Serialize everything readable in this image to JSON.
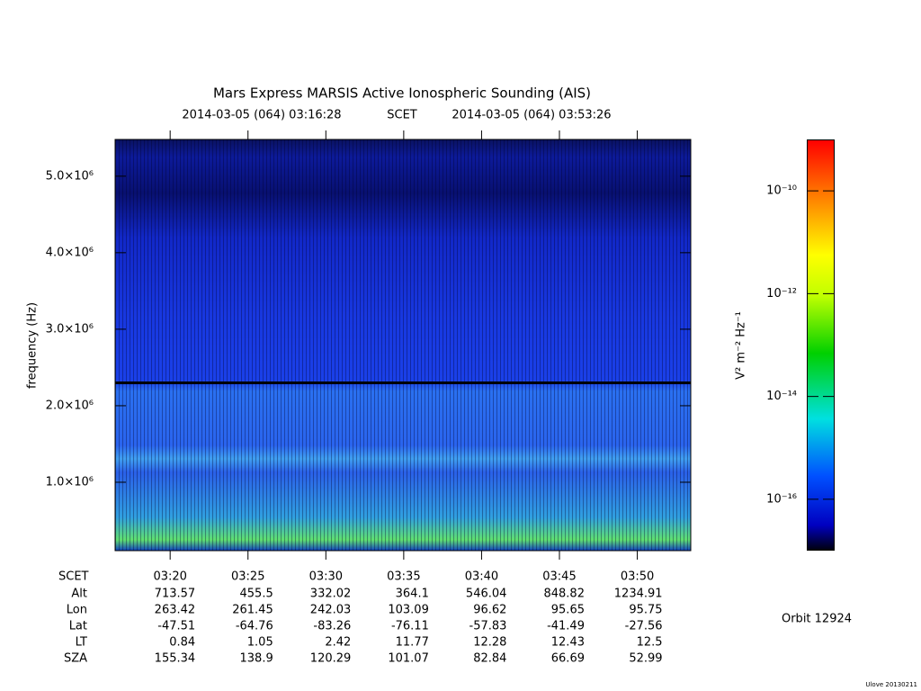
{
  "chart_data": {
    "type": "spectrogram",
    "title": "Mars Express MARSIS Active Ionospheric Sounding (AIS)",
    "start_label": "2014-03-05 (064) 03:16:28",
    "time_system": "SCET",
    "end_label": "2014-03-05 (064) 03:53:26",
    "ylabel": "frequency (Hz)",
    "xlim": [
      "03:16:28",
      "03:53:26"
    ],
    "xticks": [
      "03:20",
      "03:25",
      "03:30",
      "03:35",
      "03:40",
      "03:45",
      "03:50"
    ],
    "ylim": [
      106000,
      5480000
    ],
    "yticks": [
      {
        "value": 1000000,
        "label": "1.0×10⁶"
      },
      {
        "value": 2000000,
        "label": "2.0×10⁶"
      },
      {
        "value": 3000000,
        "label": "3.0×10⁶"
      },
      {
        "value": 4000000,
        "label": "4.0×10⁶"
      },
      {
        "value": 5000000,
        "label": "5.0×10⁶"
      }
    ],
    "colorbar": {
      "label": "V² m⁻² Hz⁻¹",
      "log": true,
      "lim": [
        1e-17,
        1e-09
      ],
      "ticks": [
        {
          "value": 1e-10,
          "label": "10⁻¹⁰"
        },
        {
          "value": 1e-12,
          "label": "10⁻¹²"
        },
        {
          "value": 1e-14,
          "label": "10⁻¹⁴"
        },
        {
          "value": 1e-16,
          "label": "10⁻¹⁶"
        }
      ]
    },
    "ephemeris": {
      "time_row": "SCET",
      "rows": [
        {
          "name": "Alt",
          "values": [
            713.57,
            455.5,
            332.02,
            364.1,
            546.04,
            848.82,
            1234.91
          ]
        },
        {
          "name": "Lon",
          "values": [
            263.42,
            261.45,
            242.03,
            103.09,
            96.62,
            95.65,
            95.75
          ]
        },
        {
          "name": "Lat",
          "values": [
            -47.51,
            -64.76,
            -83.26,
            -76.11,
            -57.83,
            -41.49,
            -27.56
          ]
        },
        {
          "name": "LT",
          "values": [
            0.84,
            1.05,
            2.42,
            11.77,
            12.28,
            12.43,
            12.5
          ]
        },
        {
          "name": "SZA",
          "values": [
            155.34,
            138.9,
            120.29,
            101.07,
            82.84,
            66.69,
            52.99
          ]
        }
      ]
    },
    "orbit": "Orbit 12924",
    "credit": "Ulove 20130211"
  }
}
